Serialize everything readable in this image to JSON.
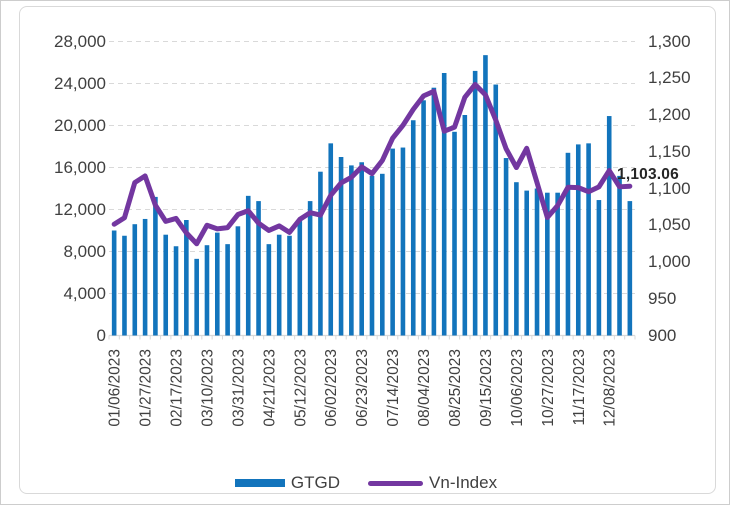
{
  "colors": {
    "bar": "#1274BC",
    "line": "#7337A0",
    "grid": "#D9D9D9",
    "axis_text": "#404040",
    "end_label_text": "#262626",
    "frame_border": "#D9D9D9"
  },
  "chart_data": {
    "type": "bar",
    "subtype": "combo-bar-line",
    "title": "",
    "xlabel": "",
    "ylabel": "",
    "grid": "horizontal-dashed",
    "legend_position": "bottom-center",
    "end_label": "1,103.06",
    "categories": [
      "01/06/2023",
      "01/13/2023",
      "01/20/2023",
      "01/27/2023",
      "02/03/2023",
      "02/10/2023",
      "02/17/2023",
      "02/24/2023",
      "03/03/2023",
      "03/10/2023",
      "03/17/2023",
      "03/24/2023",
      "03/31/2023",
      "04/07/2023",
      "04/14/2023",
      "04/21/2023",
      "04/28/2023",
      "05/05/2023",
      "05/12/2023",
      "05/19/2023",
      "05/26/2023",
      "06/02/2023",
      "06/09/2023",
      "06/16/2023",
      "06/23/2023",
      "06/30/2023",
      "07/07/2023",
      "07/14/2023",
      "07/21/2023",
      "07/28/2023",
      "08/04/2023",
      "08/11/2023",
      "08/18/2023",
      "08/25/2023",
      "09/01/2023",
      "09/08/2023",
      "09/15/2023",
      "09/22/2023",
      "09/29/2023",
      "10/06/2023",
      "10/13/2023",
      "10/20/2023",
      "10/27/2023",
      "11/03/2023",
      "11/10/2023",
      "11/17/2023",
      "11/24/2023",
      "12/01/2023",
      "12/08/2023",
      "12/15/2023",
      "12/22/2023"
    ],
    "x_tick_label_every": 3,
    "x_tick_labels_shown": [
      "01/06/2023",
      "01/27/2023",
      "02/17/2023",
      "03/10/2023",
      "03/31/2023",
      "04/21/2023",
      "05/12/2023",
      "06/02/2023",
      "06/23/2023",
      "07/14/2023",
      "08/04/2023",
      "08/25/2023",
      "09/15/2023",
      "10/06/2023",
      "10/27/2023",
      "11/17/2023",
      "12/08/2023"
    ],
    "series": [
      {
        "name": "GTGD",
        "type": "bar",
        "axis": "left",
        "values": [
          10000,
          9500,
          10600,
          11100,
          13200,
          9600,
          8500,
          11000,
          7300,
          8600,
          9800,
          8700,
          10400,
          13300,
          12800,
          8700,
          9600,
          9500,
          10900,
          12800,
          15600,
          18300,
          17000,
          16200,
          16500,
          15200,
          15400,
          17800,
          17900,
          20500,
          22400,
          23600,
          25000,
          19400,
          21000,
          25200,
          26700,
          23900,
          16900,
          14600,
          13800,
          14000,
          13600,
          13600,
          17400,
          18200,
          18300,
          12900,
          20900,
          15200,
          12800
        ]
      },
      {
        "name": "Vn-Index",
        "type": "line",
        "axis": "right",
        "values": [
          1051.4,
          1060.2,
          1108.1,
          1117.1,
          1077.2,
          1055.3,
          1059.3,
          1039.6,
          1024.8,
          1050.0,
          1045.1,
          1046.8,
          1064.6,
          1069.7,
          1052.9,
          1042.9,
          1049.1,
          1040.3,
          1058.0,
          1067.1,
          1063.8,
          1090.8,
          1107.5,
          1115.2,
          1129.4,
          1120.2,
          1138.1,
          1168.4,
          1185.9,
          1207.7,
          1226.0,
          1232.2,
          1178.0,
          1183.4,
          1224.1,
          1241.5,
          1227.4,
          1193.1,
          1154.2,
          1128.5,
          1154.7,
          1108.0,
          1060.6,
          1076.8,
          1101.7,
          1101.2,
          1095.6,
          1102.2,
          1124.4,
          1102.3,
          1103.06
        ]
      }
    ],
    "left_axis": {
      "min": 0,
      "max": 28000,
      "step": 4000,
      "tick_labels": [
        "0",
        "4,000",
        "8,000",
        "12,000",
        "16,000",
        "20,000",
        "24,000",
        "28,000"
      ],
      "tick_values": [
        0,
        4000,
        8000,
        12000,
        16000,
        20000,
        24000,
        28000
      ]
    },
    "right_axis": {
      "min": 900,
      "max": 1300,
      "step": 50,
      "tick_labels": [
        "900",
        "950",
        "1,000",
        "1,050",
        "1,100",
        "1,150",
        "1,200",
        "1,250",
        "1,300"
      ],
      "tick_values": [
        900,
        950,
        1000,
        1050,
        1100,
        1150,
        1200,
        1250,
        1300
      ]
    }
  }
}
